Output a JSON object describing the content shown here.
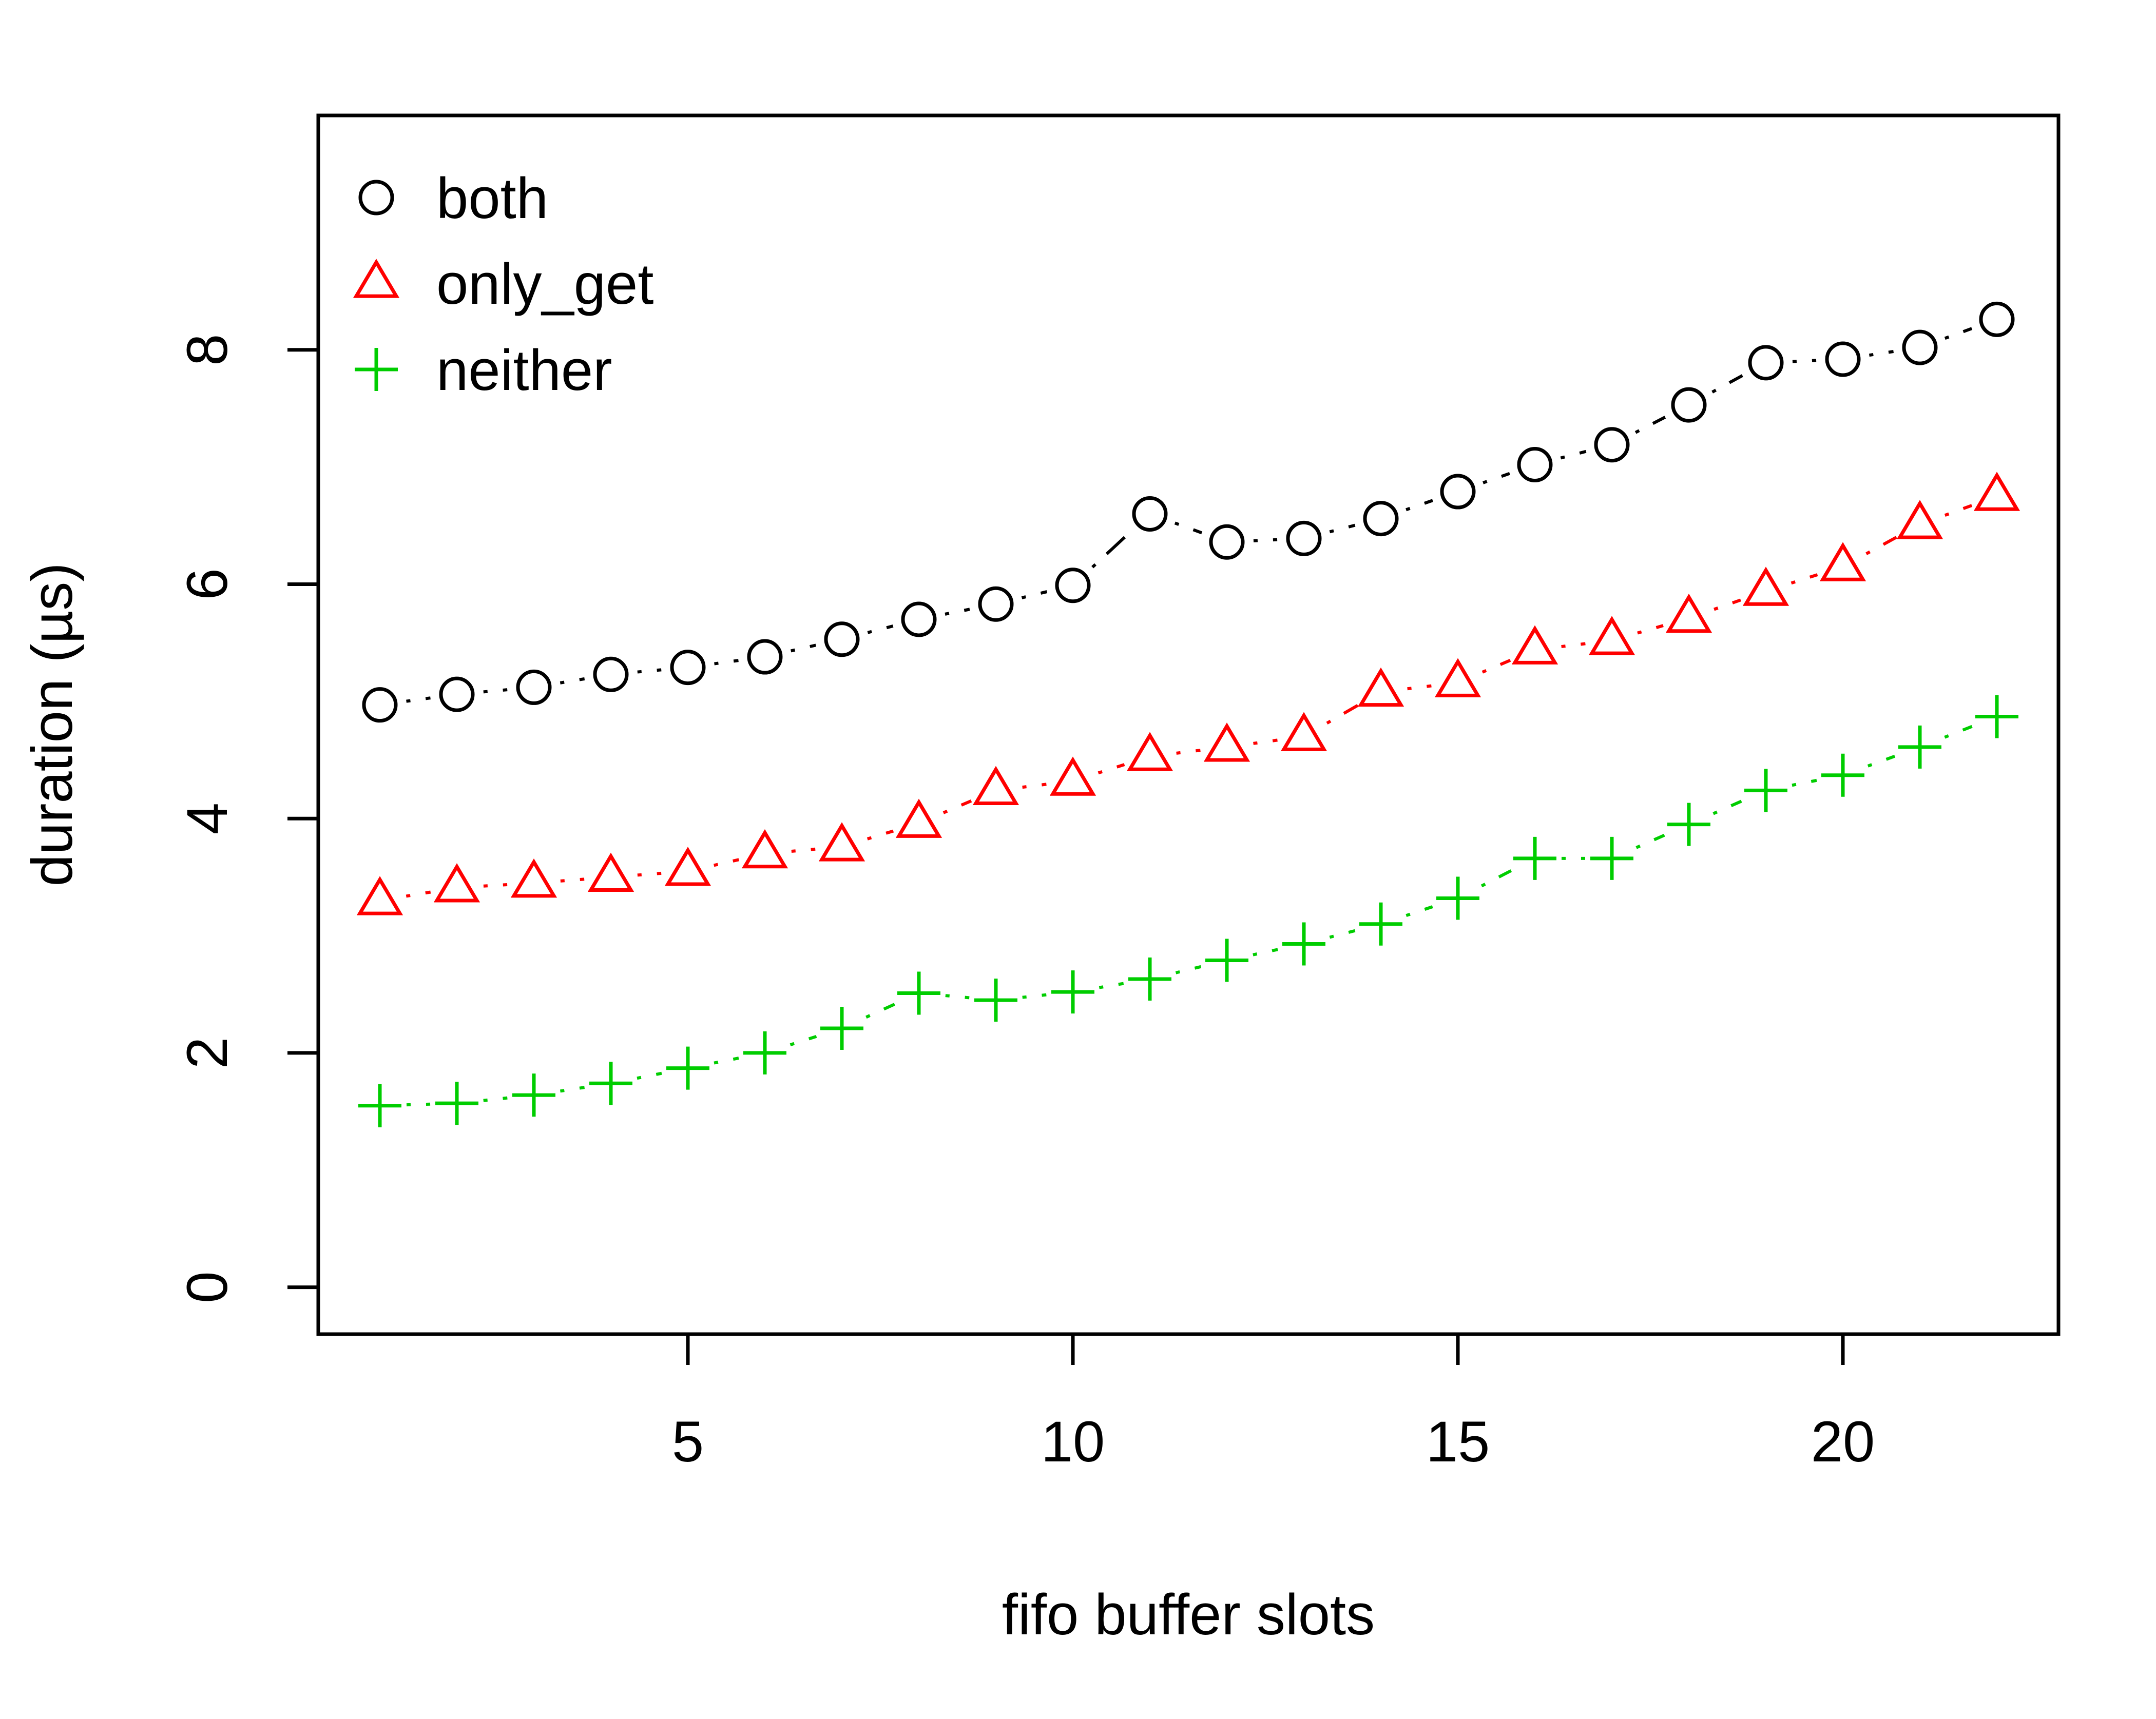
{
  "chart_data": {
    "type": "line",
    "title": "",
    "xlabel": "fifo buffer slots",
    "ylabel": "duration (µs)",
    "xlim": [
      0.2,
      22.8
    ],
    "ylim": [
      -0.4,
      10.0
    ],
    "x_ticks": [
      5,
      10,
      15,
      20
    ],
    "y_ticks": [
      0,
      2,
      4,
      6,
      8
    ],
    "grid": false,
    "legend_position": "top-left",
    "x": [
      1,
      2,
      3,
      4,
      5,
      6,
      7,
      8,
      9,
      10,
      11,
      12,
      13,
      14,
      15,
      16,
      17,
      18,
      19,
      20,
      21,
      22
    ],
    "series": [
      {
        "name": "both",
        "marker": "circle",
        "line_style": "dashdot",
        "color": "#000000",
        "values": [
          4.97,
          5.06,
          5.12,
          5.23,
          5.29,
          5.38,
          5.53,
          5.7,
          5.83,
          5.99,
          6.6,
          6.36,
          6.39,
          6.56,
          6.79,
          7.02,
          7.19,
          7.53,
          7.89,
          7.92,
          8.02,
          8.26
        ]
      },
      {
        "name": "only_get",
        "marker": "triangle",
        "line_style": "dashdot",
        "color": "#ff0000",
        "values": [
          3.3,
          3.41,
          3.45,
          3.5,
          3.55,
          3.7,
          3.76,
          3.96,
          4.24,
          4.32,
          4.53,
          4.61,
          4.7,
          5.08,
          5.16,
          5.44,
          5.52,
          5.71,
          5.94,
          6.15,
          6.51,
          6.75
        ]
      },
      {
        "name": "neither",
        "marker": "plus",
        "line_style": "dashdot",
        "color": "#00cd00",
        "values": [
          1.55,
          1.57,
          1.64,
          1.74,
          1.87,
          2.0,
          2.21,
          2.51,
          2.45,
          2.52,
          2.63,
          2.79,
          2.93,
          3.1,
          3.32,
          3.66,
          3.66,
          3.95,
          4.24,
          4.37,
          4.61,
          4.87
        ]
      }
    ]
  }
}
